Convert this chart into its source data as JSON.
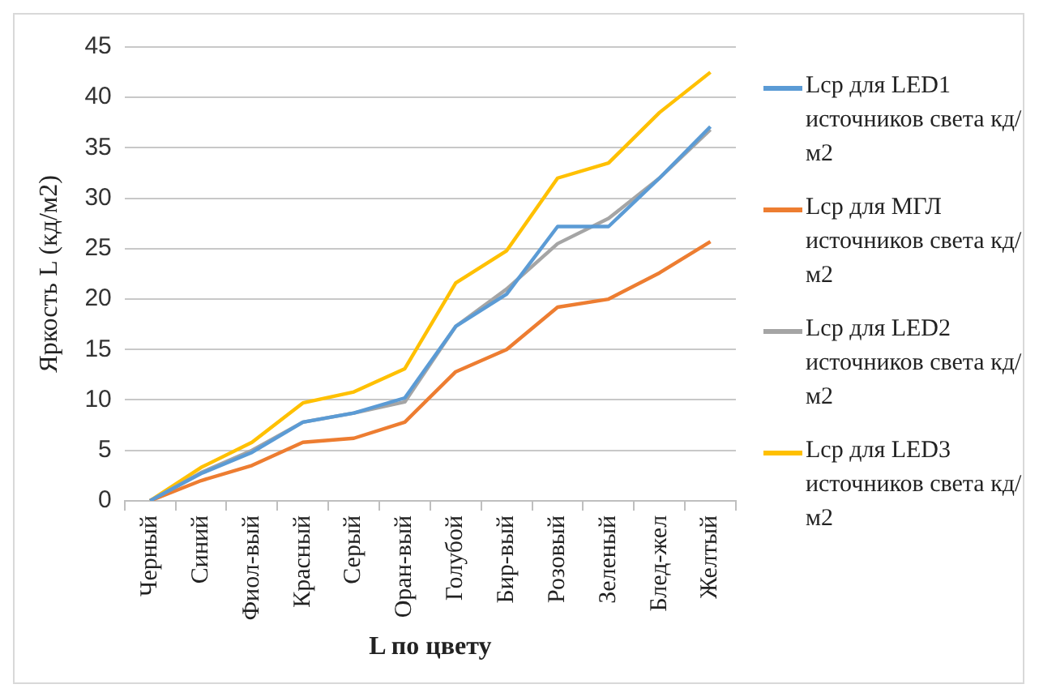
{
  "chart_data": {
    "type": "line",
    "xlabel": "L по цвету",
    "ylabel": "Яркость L (кд/м2)",
    "categories": [
      "Черный",
      "Синий",
      "Фиол-вый",
      "Красный",
      "Серый",
      "Оран-вый",
      "Голубой",
      "Бир-вый",
      "Розовый",
      "Зеленый",
      "Блед-жел",
      "Желтый"
    ],
    "series": [
      {
        "name": "Lср для LED1 источников света кд/м2",
        "color": "#5b9bd5",
        "values": [
          0,
          2.7,
          4.8,
          7.8,
          8.7,
          10.2,
          17.3,
          20.5,
          27.2,
          27.2,
          32,
          37.1
        ]
      },
      {
        "name": "Lср для МГЛ источников света кд/м2",
        "color": "#ed7d31",
        "values": [
          0,
          2,
          3.5,
          5.8,
          6.2,
          7.8,
          12.8,
          15,
          19.2,
          20,
          22.6,
          25.7
        ]
      },
      {
        "name": "Lср для LED2 источников света кд/м2",
        "color": "#a5a5a5",
        "values": [
          0,
          2.8,
          5,
          7.8,
          8.7,
          9.8,
          17.3,
          21,
          25.5,
          28,
          32,
          36.8
        ]
      },
      {
        "name": "Lср для LED3 источников света кд/м2",
        "color": "#ffc000",
        "values": [
          0,
          3.3,
          5.8,
          9.7,
          10.8,
          13.1,
          21.6,
          24.8,
          32,
          33.5,
          38.5,
          42.5
        ]
      }
    ],
    "ylim": [
      0,
      45
    ],
    "yticks": [
      0,
      5,
      10,
      15,
      20,
      25,
      30,
      35,
      40,
      45
    ],
    "grid": "y",
    "legend": "right",
    "marker": "none",
    "line_style": "solid"
  }
}
